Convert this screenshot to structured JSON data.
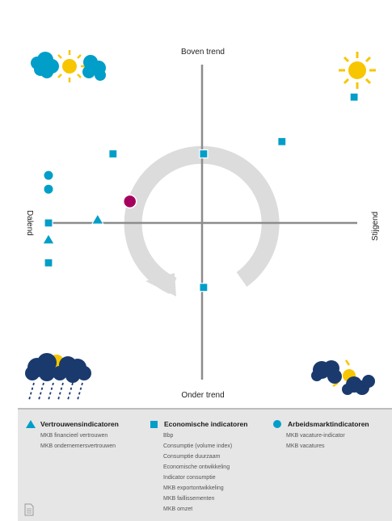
{
  "chart_data": {
    "type": "scatter",
    "title": "",
    "axes": {
      "top": "Boven trend",
      "bottom": "Onder trend",
      "left": "Dalend",
      "right": "Stijgend"
    },
    "xlim": [
      -1,
      1
    ],
    "ylim": [
      -1,
      1
    ],
    "points": [
      {
        "group": "Economische indicatoren",
        "shape": "square",
        "x": 0.99,
        "y": 0.82
      },
      {
        "group": "Economische indicatoren",
        "shape": "square",
        "x": 0.52,
        "y": 0.53
      },
      {
        "group": "Economische indicatoren",
        "shape": "square",
        "x": 0.01,
        "y": 0.45
      },
      {
        "group": "Economische indicatoren",
        "shape": "square",
        "x": -0.58,
        "y": 0.45
      },
      {
        "group": "Economische indicatoren",
        "shape": "square",
        "x": -1.0,
        "y": 0.0
      },
      {
        "group": "Economische indicatoren",
        "shape": "square",
        "x": -1.0,
        "y": -0.26
      },
      {
        "group": "Economische indicatoren",
        "shape": "square",
        "x": 0.01,
        "y": -0.42
      },
      {
        "group": "Arbeidsmarktindicatoren",
        "shape": "circle",
        "x": -1.0,
        "y": 0.31
      },
      {
        "group": "Arbeidsmarktindicatoren",
        "shape": "circle",
        "x": -1.0,
        "y": 0.22
      },
      {
        "group": "Vertrouwensindicatoren",
        "shape": "triangle",
        "x": -0.68,
        "y": 0.02
      },
      {
        "group": "Vertrouwensindicatoren",
        "shape": "triangle",
        "x": -1.0,
        "y": -0.11
      },
      {
        "group": "Highlight",
        "shape": "circle-large",
        "x": -0.47,
        "y": 0.14
      }
    ],
    "colors": {
      "point": "#009ec8",
      "highlight": "#a6005f",
      "axis": "#8c8c8c",
      "cycle": "#dcdcdc"
    }
  },
  "legend": {
    "groups": [
      {
        "title": "Vertrouwensindicatoren",
        "symbol": "triangle",
        "items": [
          "MKB financieel vertrouwen",
          "MKB ondernemersvertrouwen"
        ]
      },
      {
        "title": "Economische indicatoren",
        "symbol": "square",
        "items": [
          "Bbp",
          "Consumptie (volume index)",
          "Consumptie duurzaam",
          "Economische ontwikkeling",
          "Indicator consumptie",
          "MKB exportontwikkeling",
          "MKB faillissementen",
          "MKB omzet"
        ]
      },
      {
        "title": "Arbeidsmarktindicatoren",
        "symbol": "circle",
        "items": [
          "MKB vacature-indicator",
          "MKB vacatures"
        ]
      }
    ]
  },
  "icons": {
    "top_left": "sun-behind-clouds-icon",
    "top_right": "sun-icon",
    "bottom_left": "storm-cloud-rain-icon",
    "bottom_right": "sun-breaking-clouds-icon",
    "footer": "document-icon"
  }
}
